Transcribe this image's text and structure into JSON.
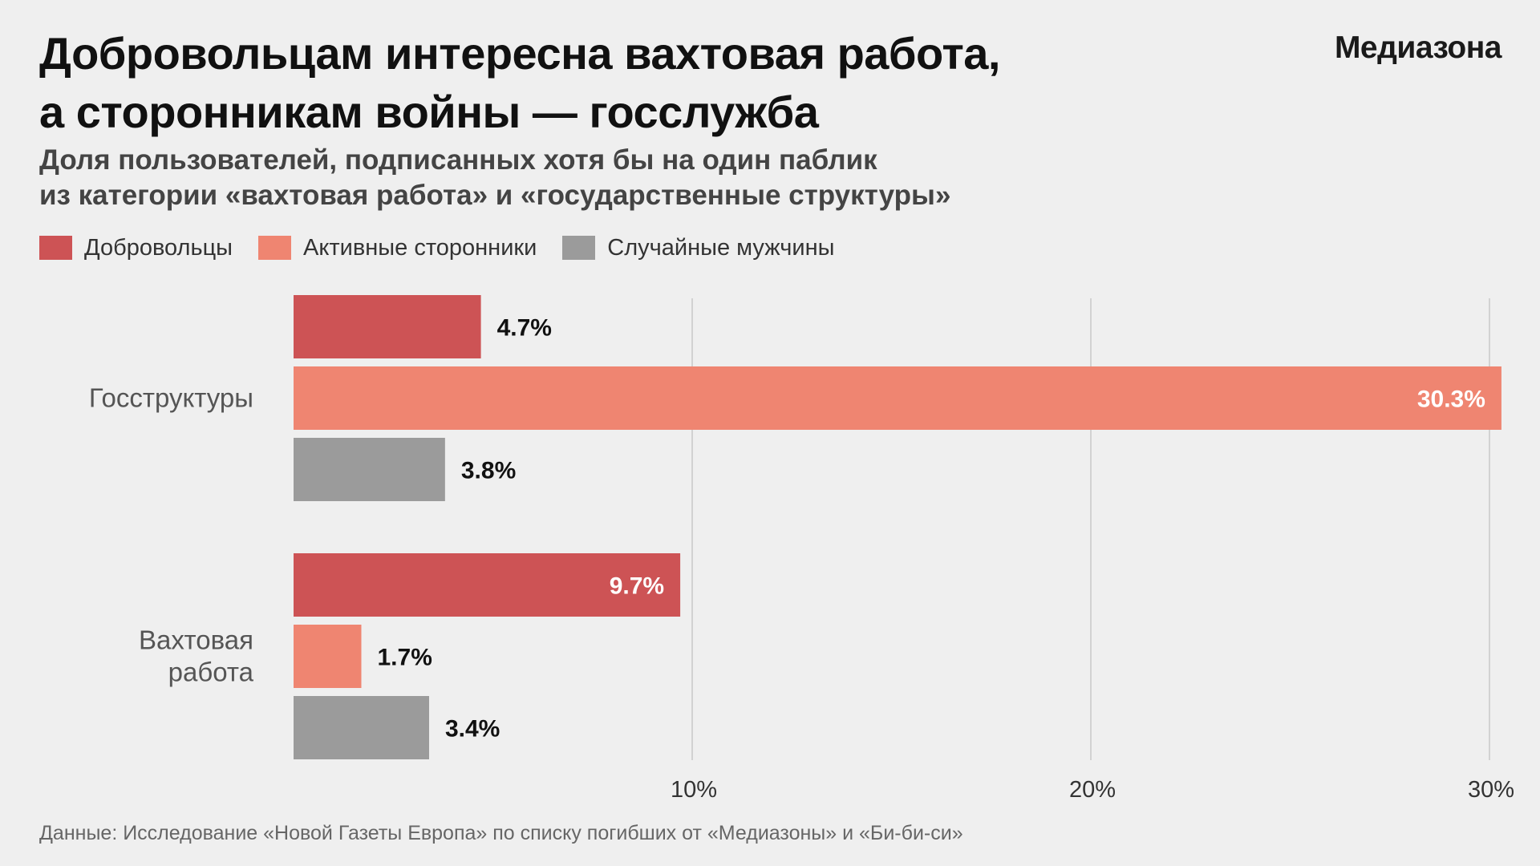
{
  "header": {
    "title_line1": "Добровольцам интересна вахтовая работа,",
    "title_line2": "а сторонникам войны — госслужба",
    "brand": "Медиазона",
    "subtitle_line1": "Доля пользователей, подписанных хотя бы на один паблик",
    "subtitle_line2": "из категории «вахтовая работа» и «государственные структуры»"
  },
  "legend": [
    {
      "label": "Добровольцы",
      "color": "#cd5355"
    },
    {
      "label": "Активные сторонники",
      "color": "#ef8571"
    },
    {
      "label": "Случайные мужчины",
      "color": "#9b9b9b"
    }
  ],
  "chart_data": {
    "type": "bar",
    "orientation": "horizontal",
    "categories": [
      "Госструктуры",
      "Вахтовая\nработа"
    ],
    "series": [
      {
        "name": "Добровольцы",
        "color": "#cd5355",
        "values": [
          4.7,
          9.7
        ],
        "labels": [
          "4.7%",
          "9.7%"
        ]
      },
      {
        "name": "Активные сторонники",
        "color": "#ef8571",
        "values": [
          30.3,
          1.7
        ],
        "labels": [
          "30.3%",
          "1.7%"
        ]
      },
      {
        "name": "Случайные мужчины",
        "color": "#9b9b9b",
        "values": [
          3.8,
          3.4
        ],
        "labels": [
          "3.8%",
          "3.4%"
        ]
      }
    ],
    "x_ticks": [
      10,
      20,
      30
    ],
    "x_tick_labels": [
      "10%",
      "20%",
      "30%"
    ],
    "xlim": [
      0,
      30.3
    ],
    "grid": true,
    "legend_position": "top-left"
  },
  "source": "Данные: Исследование «Новой Газеты Европа» по списку погибших от «Медиазоны» и «Би-би-си»"
}
